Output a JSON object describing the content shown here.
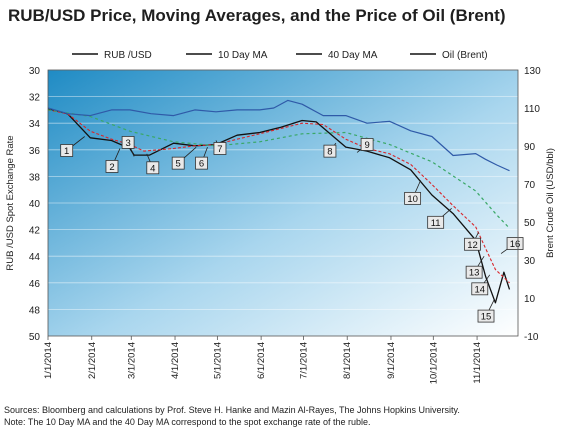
{
  "title": "RUB/USD Price, Moving Averages, and the Price of Oil (Brent)",
  "notes": {
    "sources": "Sources: Bloomberg and calculations by Prof. Steve H. Hanke and Mazin Al-Rayes, The Johns Hopkins University.",
    "note": "Note: The 10 Day MA and the 40 Day MA correspond to the spot exchange rate of the ruble."
  },
  "colors": {
    "rub": "#111111",
    "ma10": "#d9262b",
    "ma40": "#3aa867",
    "oil": "#2f5aa8",
    "bg_dark": "#1f8bc4",
    "bg_light": "#ffffff"
  },
  "chart_data": {
    "type": "line",
    "title": "RUB/USD Price, Moving Averages, and the Price of Oil (Brent)",
    "grid": true,
    "legend_placement": "top",
    "x_ticks": [
      "1/1/2014",
      "2/1/2014",
      "3/1/2014",
      "4/1/2014",
      "5/1/2014",
      "6/1/2014",
      "7/1/2014",
      "8/1/2014",
      "9/1/2014",
      "10/1/2014",
      "11/1/2014"
    ],
    "x_range": [
      "2014-01-01",
      "2014-11-30"
    ],
    "y_left": {
      "label": "RUB /USD Spot Exchange Rate",
      "ticks": [
        30,
        32,
        34,
        36,
        38,
        40,
        42,
        44,
        46,
        48,
        50
      ],
      "range": [
        30,
        50
      ],
      "inverted": true
    },
    "y_right": {
      "label": "Brent Crude Oil (USD/bbl)",
      "ticks": [
        130,
        110,
        90,
        70,
        50,
        30,
        10,
        -10
      ],
      "range": [
        -10,
        130
      ]
    },
    "series": [
      {
        "name": "RUB /USD",
        "axis": "left",
        "points": [
          [
            "2014-01-01",
            32.9
          ],
          [
            "2014-01-15",
            33.3
          ],
          [
            "2014-01-31",
            35.1
          ],
          [
            "2014-02-15",
            35.3
          ],
          [
            "2014-02-28",
            35.9
          ],
          [
            "2014-03-03",
            36.4
          ],
          [
            "2014-03-14",
            36.4
          ],
          [
            "2014-03-31",
            35.5
          ],
          [
            "2014-04-15",
            35.7
          ],
          [
            "2014-04-30",
            35.6
          ],
          [
            "2014-05-15",
            34.9
          ],
          [
            "2014-05-31",
            34.7
          ],
          [
            "2014-06-15",
            34.3
          ],
          [
            "2014-06-30",
            33.8
          ],
          [
            "2014-07-10",
            33.9
          ],
          [
            "2014-07-31",
            35.8
          ],
          [
            "2014-08-15",
            36.1
          ],
          [
            "2014-08-31",
            36.6
          ],
          [
            "2014-09-15",
            37.5
          ],
          [
            "2014-09-30",
            39.4
          ],
          [
            "2014-10-15",
            40.8
          ],
          [
            "2014-10-31",
            42.8
          ],
          [
            "2014-11-07",
            45.5
          ],
          [
            "2014-11-14",
            47.5
          ],
          [
            "2014-11-20",
            45.2
          ],
          [
            "2014-11-24",
            46.5
          ]
        ]
      },
      {
        "name": "10 Day MA",
        "axis": "left",
        "points": [
          [
            "2014-01-01",
            33.0
          ],
          [
            "2014-01-15",
            33.3
          ],
          [
            "2014-01-31",
            34.6
          ],
          [
            "2014-02-15",
            35.2
          ],
          [
            "2014-02-28",
            35.6
          ],
          [
            "2014-03-10",
            36.1
          ],
          [
            "2014-03-31",
            35.9
          ],
          [
            "2014-04-15",
            35.7
          ],
          [
            "2014-04-30",
            35.6
          ],
          [
            "2014-05-15",
            35.2
          ],
          [
            "2014-05-31",
            34.8
          ],
          [
            "2014-06-15",
            34.4
          ],
          [
            "2014-06-30",
            34.0
          ],
          [
            "2014-07-15",
            34.1
          ],
          [
            "2014-07-31",
            35.2
          ],
          [
            "2014-08-15",
            35.9
          ],
          [
            "2014-08-31",
            36.3
          ],
          [
            "2014-09-15",
            37.1
          ],
          [
            "2014-09-30",
            38.6
          ],
          [
            "2014-10-15",
            40.2
          ],
          [
            "2014-10-31",
            41.8
          ],
          [
            "2014-11-07",
            43.4
          ],
          [
            "2014-11-14",
            45.0
          ],
          [
            "2014-11-24",
            46.0
          ]
        ]
      },
      {
        "name": "40 Day MA",
        "axis": "left",
        "points": [
          [
            "2014-01-01",
            33.0
          ],
          [
            "2014-01-31",
            33.5
          ],
          [
            "2014-02-28",
            34.6
          ],
          [
            "2014-03-31",
            35.4
          ],
          [
            "2014-04-30",
            35.7
          ],
          [
            "2014-05-31",
            35.4
          ],
          [
            "2014-06-30",
            34.8
          ],
          [
            "2014-07-31",
            34.7
          ],
          [
            "2014-08-31",
            35.6
          ],
          [
            "2014-09-30",
            36.9
          ],
          [
            "2014-10-31",
            39.1
          ],
          [
            "2014-11-15",
            40.9
          ],
          [
            "2014-11-24",
            41.9
          ]
        ]
      },
      {
        "name": "Oil (Brent)",
        "axis": "right",
        "points": [
          [
            "2014-01-01",
            110
          ],
          [
            "2014-01-15",
            107
          ],
          [
            "2014-01-31",
            106
          ],
          [
            "2014-02-15",
            109
          ],
          [
            "2014-02-28",
            109
          ],
          [
            "2014-03-15",
            107
          ],
          [
            "2014-03-31",
            106
          ],
          [
            "2014-04-15",
            109
          ],
          [
            "2014-04-30",
            108
          ],
          [
            "2014-05-15",
            109
          ],
          [
            "2014-05-31",
            109
          ],
          [
            "2014-06-10",
            110
          ],
          [
            "2014-06-20",
            114
          ],
          [
            "2014-06-30",
            112
          ],
          [
            "2014-07-15",
            106
          ],
          [
            "2014-07-31",
            106
          ],
          [
            "2014-08-15",
            102
          ],
          [
            "2014-08-31",
            103
          ],
          [
            "2014-09-15",
            98
          ],
          [
            "2014-09-30",
            95
          ],
          [
            "2014-10-15",
            85
          ],
          [
            "2014-10-31",
            86
          ],
          [
            "2014-11-07",
            83
          ],
          [
            "2014-11-15",
            80
          ],
          [
            "2014-11-24",
            77
          ]
        ]
      }
    ],
    "annotations": [
      {
        "label": "1",
        "x": "2014-01-27",
        "y": 35.0
      },
      {
        "label": "2",
        "x": "2014-02-21",
        "y": 35.9
      },
      {
        "label": "3",
        "x": "2014-03-03",
        "y": 36.5
      },
      {
        "label": "4",
        "x": "2014-03-12",
        "y": 36.3
      },
      {
        "label": "5",
        "x": "2014-04-16",
        "y": 35.8
      },
      {
        "label": "6",
        "x": "2014-04-24",
        "y": 35.8
      },
      {
        "label": "7",
        "x": "2014-04-30",
        "y": 35.3
      },
      {
        "label": "8",
        "x": "2014-07-24",
        "y": 35.5
      },
      {
        "label": "9",
        "x": "2014-08-08",
        "y": 36.2
      },
      {
        "label": "10",
        "x": "2014-09-22",
        "y": 38.3
      },
      {
        "label": "11",
        "x": "2014-10-14",
        "y": 40.4
      },
      {
        "label": "12",
        "x": "2014-11-02",
        "y": 42.2
      },
      {
        "label": "13",
        "x": "2014-11-06",
        "y": 44.0
      },
      {
        "label": "14",
        "x": "2014-11-10",
        "y": 45.4
      },
      {
        "label": "15",
        "x": "2014-11-13",
        "y": 47.3
      },
      {
        "label": "16",
        "x": "2014-11-18",
        "y": 43.8
      }
    ]
  }
}
